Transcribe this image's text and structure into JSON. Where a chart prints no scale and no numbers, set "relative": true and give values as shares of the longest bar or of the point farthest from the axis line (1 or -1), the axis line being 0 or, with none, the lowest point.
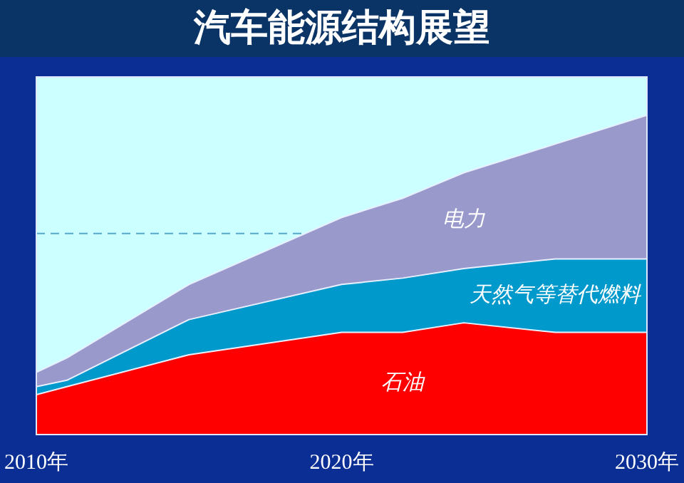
{
  "chart_data": {
    "type": "area",
    "title": "汽车能源结构展望",
    "relative": true,
    "stacked": true,
    "legend": false,
    "grid": false,
    "x": [
      2010,
      2011,
      2015,
      2020,
      2022,
      2024,
      2027,
      2030
    ],
    "xlim": [
      2010,
      2030
    ],
    "xticks": [
      {
        "value": 2010,
        "label": "2010年"
      },
      {
        "value": 2020,
        "label": "2020年"
      },
      {
        "value": 2030,
        "label": "2030年"
      }
    ],
    "series": [
      {
        "name": "石油",
        "color": "#ff0000",
        "values": [
          0.125,
          0.15,
          0.25,
          0.32,
          0.32,
          0.35,
          0.32,
          0.32
        ]
      },
      {
        "name": "天然气等替代燃料",
        "color": "#0099cc",
        "values": [
          0.025,
          0.02,
          0.11,
          0.15,
          0.17,
          0.17,
          0.23,
          0.23
        ]
      },
      {
        "name": "电力",
        "color": "#9999cc",
        "values": [
          0.045,
          0.07,
          0.11,
          0.21,
          0.25,
          0.3,
          0.36,
          0.45
        ]
      }
    ],
    "ref_lines": [
      {
        "axis": "y",
        "value": 0.63,
        "color": "#55aacc",
        "line_style": "dashed"
      }
    ]
  }
}
